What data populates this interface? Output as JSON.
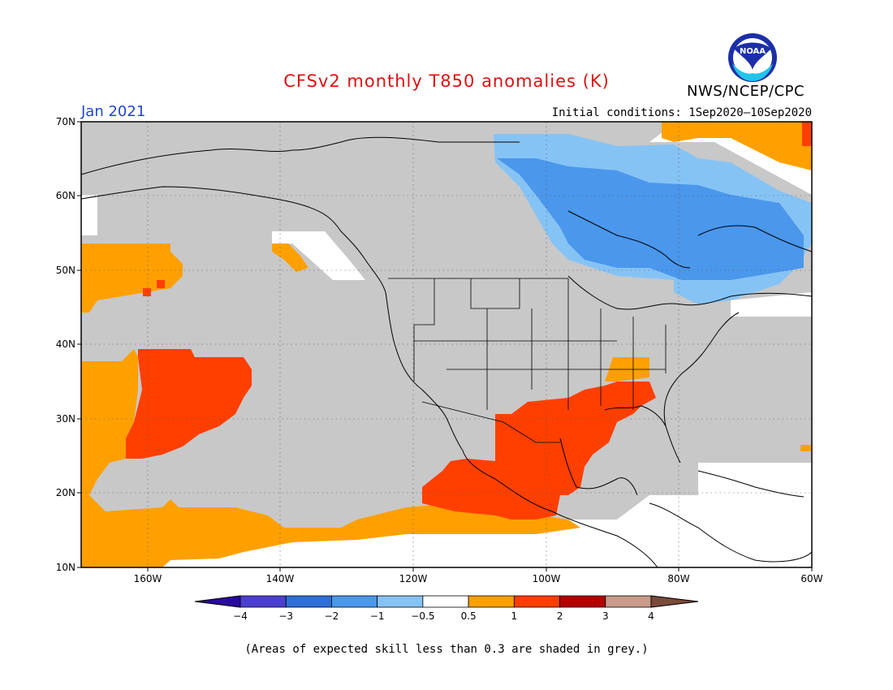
{
  "title": "CFSv2 monthly T850 anomalies (K)",
  "org": "NWS/NCEP/CPC",
  "logo_text": "NOAA",
  "month": "Jan 2021",
  "initial_conditions": "Initial conditions: 1Sep2020–10Sep2020",
  "lat_labels": [
    "70N",
    "60N",
    "50N",
    "40N",
    "30N",
    "20N",
    "10N"
  ],
  "lon_labels": [
    "160W",
    "140W",
    "120W",
    "100W",
    "80W",
    "60W"
  ],
  "colorbar": {
    "labels": [
      "−4",
      "−3",
      "−2",
      "−1",
      "−0.5",
      "0.5",
      "1",
      "2",
      "3",
      "4"
    ],
    "colors": [
      "#2a0a9e",
      "#4b3fd0",
      "#2e6fd8",
      "#4a97ec",
      "#86c3f5",
      "#ffffff",
      "#ffa000",
      "#ff3f00",
      "#b30000",
      "#c99b8a",
      "#7a4a3a"
    ]
  },
  "colors": {
    "grey_skill": "#c8c8c8",
    "ocean_white": "#ffffff",
    "title": "#dd1111",
    "month": "#1f46d6"
  },
  "skill_note": "(Areas of expected skill less than 0.3 are shaded in grey.)"
}
